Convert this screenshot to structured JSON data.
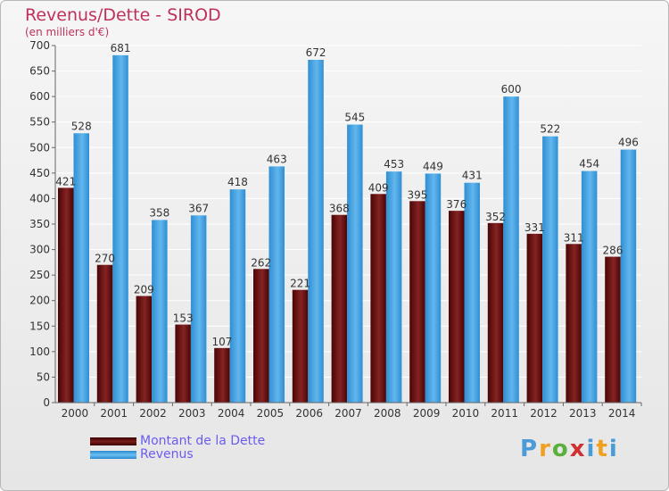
{
  "header": {
    "title": "Revenus/Dette - SIROD",
    "subtitle": "(en milliers d'€)"
  },
  "legend": {
    "dette": "Montant de la Dette",
    "revenus": "Revenus"
  },
  "logo": {
    "text": "Proxiti"
  },
  "colors": {
    "dette": "#6e1a1a",
    "revenus": "#4aa8e6",
    "title": "#c0305a",
    "legend_text": "#6a5cf0"
  },
  "chart_data": {
    "type": "bar",
    "title": "Revenus/Dette - SIROD",
    "subtitle": "(en milliers d'€)",
    "xlabel": "",
    "ylabel": "",
    "categories": [
      "2000",
      "2001",
      "2002",
      "2003",
      "2004",
      "2005",
      "2006",
      "2007",
      "2008",
      "2009",
      "2010",
      "2011",
      "2012",
      "2013",
      "2014"
    ],
    "series": [
      {
        "name": "Montant de la Dette",
        "values": [
          421,
          270,
          209,
          153,
          107,
          262,
          221,
          368,
          409,
          395,
          376,
          352,
          331,
          311,
          286
        ]
      },
      {
        "name": "Revenus",
        "values": [
          528,
          681,
          358,
          367,
          418,
          463,
          672,
          545,
          453,
          449,
          431,
          600,
          522,
          454,
          496
        ]
      }
    ],
    "ylim": [
      0,
      700
    ],
    "yticks": [
      0,
      50,
      100,
      150,
      200,
      250,
      300,
      350,
      400,
      450,
      500,
      550,
      600,
      650,
      700
    ],
    "grid": true,
    "legend_position": "bottom-left"
  }
}
